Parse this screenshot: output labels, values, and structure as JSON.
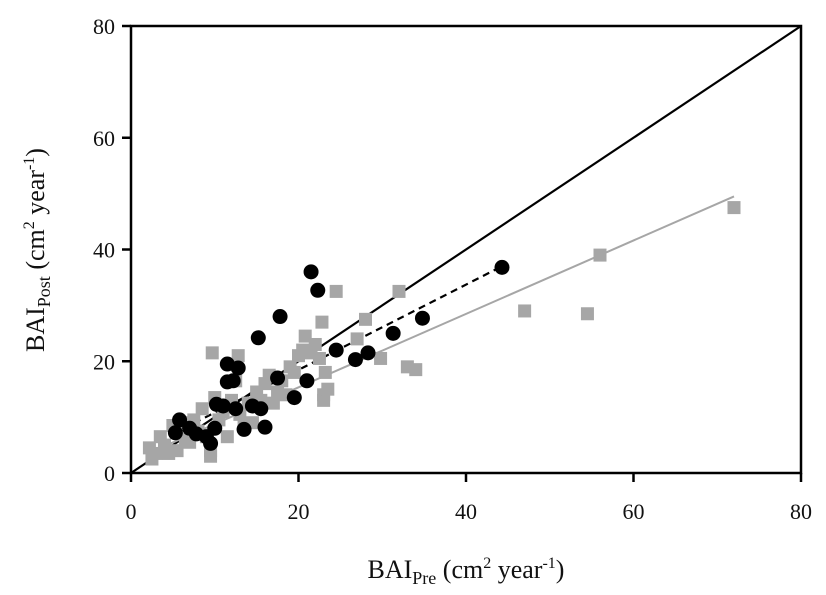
{
  "chart_data": {
    "type": "scatter",
    "xlabel": {
      "base": "BAI",
      "sub": "Pre",
      "unit_a": " (cm",
      "sup_a": "2",
      "unit_b": " year",
      "sup_b": "-1",
      "unit_c": ")"
    },
    "ylabel": {
      "base": "BAI",
      "sub": "Post",
      "unit_a": " (cm",
      "sup_a": "2",
      "unit_b": " year",
      "sup_b": "-1",
      "unit_c": ")"
    },
    "xlim": [
      0,
      80
    ],
    "ylim": [
      0,
      80
    ],
    "xticks": [
      0,
      20,
      40,
      60,
      80
    ],
    "yticks": [
      0,
      20,
      40,
      60,
      80
    ],
    "xtick_labels": [
      "0",
      "20",
      "40",
      "60",
      "80"
    ],
    "ytick_labels": [
      "0",
      "20",
      "40",
      "60",
      "80"
    ],
    "colors": {
      "circles": "#000000",
      "squares": "#a6a6a6",
      "one_to_one": "#000000",
      "fit_circles": "#000000",
      "fit_squares": "#a6a6a6"
    },
    "series": [
      {
        "name": "squares",
        "marker": "square",
        "points": [
          [
            2.2,
            4.5
          ],
          [
            2.5,
            2.5
          ],
          [
            3.0,
            3.5
          ],
          [
            3.5,
            6.5
          ],
          [
            4.0,
            5.0
          ],
          [
            4.5,
            3.5
          ],
          [
            5.0,
            8.5
          ],
          [
            5.5,
            4.0
          ],
          [
            6.0,
            9.0
          ],
          [
            6.5,
            6.0
          ],
          [
            7.0,
            5.5
          ],
          [
            7.5,
            9.5
          ],
          [
            8.0,
            7.5
          ],
          [
            8.5,
            11.5
          ],
          [
            9.0,
            6.5
          ],
          [
            9.5,
            4.0
          ],
          [
            9.5,
            3.0
          ],
          [
            9.7,
            21.5
          ],
          [
            10.0,
            13.5
          ],
          [
            10.5,
            9.5
          ],
          [
            11.0,
            11.0
          ],
          [
            11.5,
            6.5
          ],
          [
            12.0,
            13.0
          ],
          [
            12.5,
            16.5
          ],
          [
            12.8,
            21.0
          ],
          [
            13.0,
            10.5
          ],
          [
            13.5,
            8.5
          ],
          [
            14.0,
            12.5
          ],
          [
            14.5,
            9.0
          ],
          [
            15.0,
            14.5
          ],
          [
            15.5,
            13.0
          ],
          [
            16.0,
            16.0
          ],
          [
            16.5,
            17.5
          ],
          [
            17.0,
            12.5
          ],
          [
            17.5,
            14.5
          ],
          [
            18.0,
            16.5
          ],
          [
            18.5,
            14.0
          ],
          [
            19.0,
            19.0
          ],
          [
            19.5,
            18.0
          ],
          [
            20.0,
            21.0
          ],
          [
            20.5,
            22.0
          ],
          [
            20.8,
            24.5
          ],
          [
            21.5,
            21.5
          ],
          [
            22.0,
            23.0
          ],
          [
            22.5,
            20.5
          ],
          [
            22.8,
            27.0
          ],
          [
            23.0,
            14.0
          ],
          [
            23.0,
            13.0
          ],
          [
            23.2,
            18.0
          ],
          [
            23.5,
            15.0
          ],
          [
            24.5,
            32.5
          ],
          [
            27.0,
            24.0
          ],
          [
            28.0,
            27.5
          ],
          [
            29.8,
            20.5
          ],
          [
            32.0,
            32.5
          ],
          [
            33.0,
            19.0
          ],
          [
            34.0,
            18.5
          ],
          [
            47.0,
            29.0
          ],
          [
            54.5,
            28.5
          ],
          [
            56.0,
            39.0
          ],
          [
            72.0,
            47.5
          ]
        ]
      },
      {
        "name": "circles",
        "marker": "circle",
        "points": [
          [
            5.3,
            7.2
          ],
          [
            5.8,
            9.5
          ],
          [
            7.0,
            8.0
          ],
          [
            7.8,
            7.0
          ],
          [
            9.0,
            6.5
          ],
          [
            9.5,
            5.3
          ],
          [
            10.0,
            8.0
          ],
          [
            10.2,
            12.3
          ],
          [
            11.0,
            12.0
          ],
          [
            11.5,
            16.3
          ],
          [
            11.5,
            19.5
          ],
          [
            12.2,
            16.5
          ],
          [
            12.5,
            11.5
          ],
          [
            12.8,
            18.8
          ],
          [
            13.5,
            7.8
          ],
          [
            14.5,
            12.0
          ],
          [
            15.2,
            24.2
          ],
          [
            15.5,
            11.5
          ],
          [
            16.0,
            8.2
          ],
          [
            17.5,
            17.0
          ],
          [
            17.8,
            28.0
          ],
          [
            19.5,
            13.5
          ],
          [
            21.0,
            16.5
          ],
          [
            21.5,
            36.0
          ],
          [
            22.3,
            32.7
          ],
          [
            24.5,
            22.0
          ],
          [
            26.8,
            20.3
          ],
          [
            28.3,
            21.5
          ],
          [
            31.3,
            25.0
          ],
          [
            34.8,
            27.7
          ],
          [
            44.3,
            36.8
          ]
        ]
      }
    ],
    "lines": [
      {
        "name": "one-to-one",
        "style": "solid",
        "points": [
          [
            0,
            0
          ],
          [
            80,
            80
          ]
        ]
      },
      {
        "name": "fit-circles",
        "style": "dashed",
        "points": [
          [
            5,
            7.0
          ],
          [
            44.3,
            37.0
          ]
        ]
      },
      {
        "name": "fit-squares",
        "style": "solid",
        "points": [
          [
            2,
            3.5
          ],
          [
            72,
            49.5
          ]
        ]
      }
    ]
  }
}
